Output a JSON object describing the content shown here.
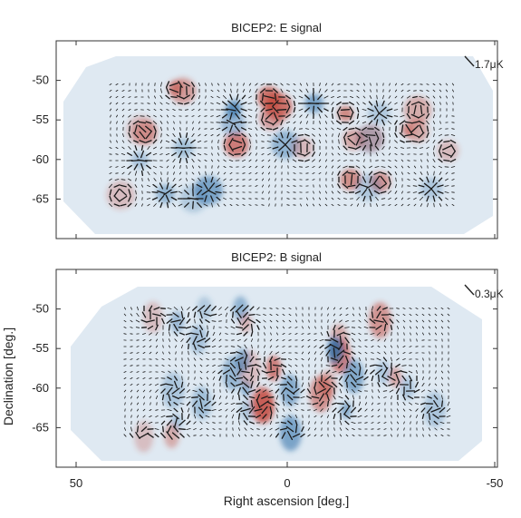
{
  "figure": {
    "xlabel": "Right ascension [deg.]",
    "ylabel": "Declination [deg.]"
  },
  "chart_data": [
    {
      "type": "heatmap",
      "title": "BICEP2: E signal",
      "scale_label": "1.7μK",
      "xlim": [
        55,
        -55
      ],
      "ylim": [
        -70,
        -45
      ],
      "xticks": [],
      "yticks": [
        "-50",
        "-55",
        "-60",
        "-65"
      ],
      "ytick_values": [
        -50,
        -55,
        -60,
        -65
      ],
      "colors": {
        "positive": "#c0392b",
        "negative": "#2f6fa8",
        "footprint": "#dfe9f2"
      },
      "mode": "E"
    },
    {
      "type": "heatmap",
      "title": "BICEP2: B signal",
      "scale_label": "0.3μK",
      "xlim": [
        55,
        -55
      ],
      "ylim": [
        -70,
        -45
      ],
      "xticks": [
        "50",
        "0",
        "-50"
      ],
      "xtick_values": [
        50,
        0,
        -50
      ],
      "yticks": [
        "-50",
        "-55",
        "-60",
        "-65"
      ],
      "ytick_values": [
        -50,
        -55,
        -60,
        -65
      ],
      "colors": {
        "positive": "#c0392b",
        "negative": "#2f6fa8",
        "footprint": "#dfe9f2"
      },
      "mode": "B"
    }
  ]
}
